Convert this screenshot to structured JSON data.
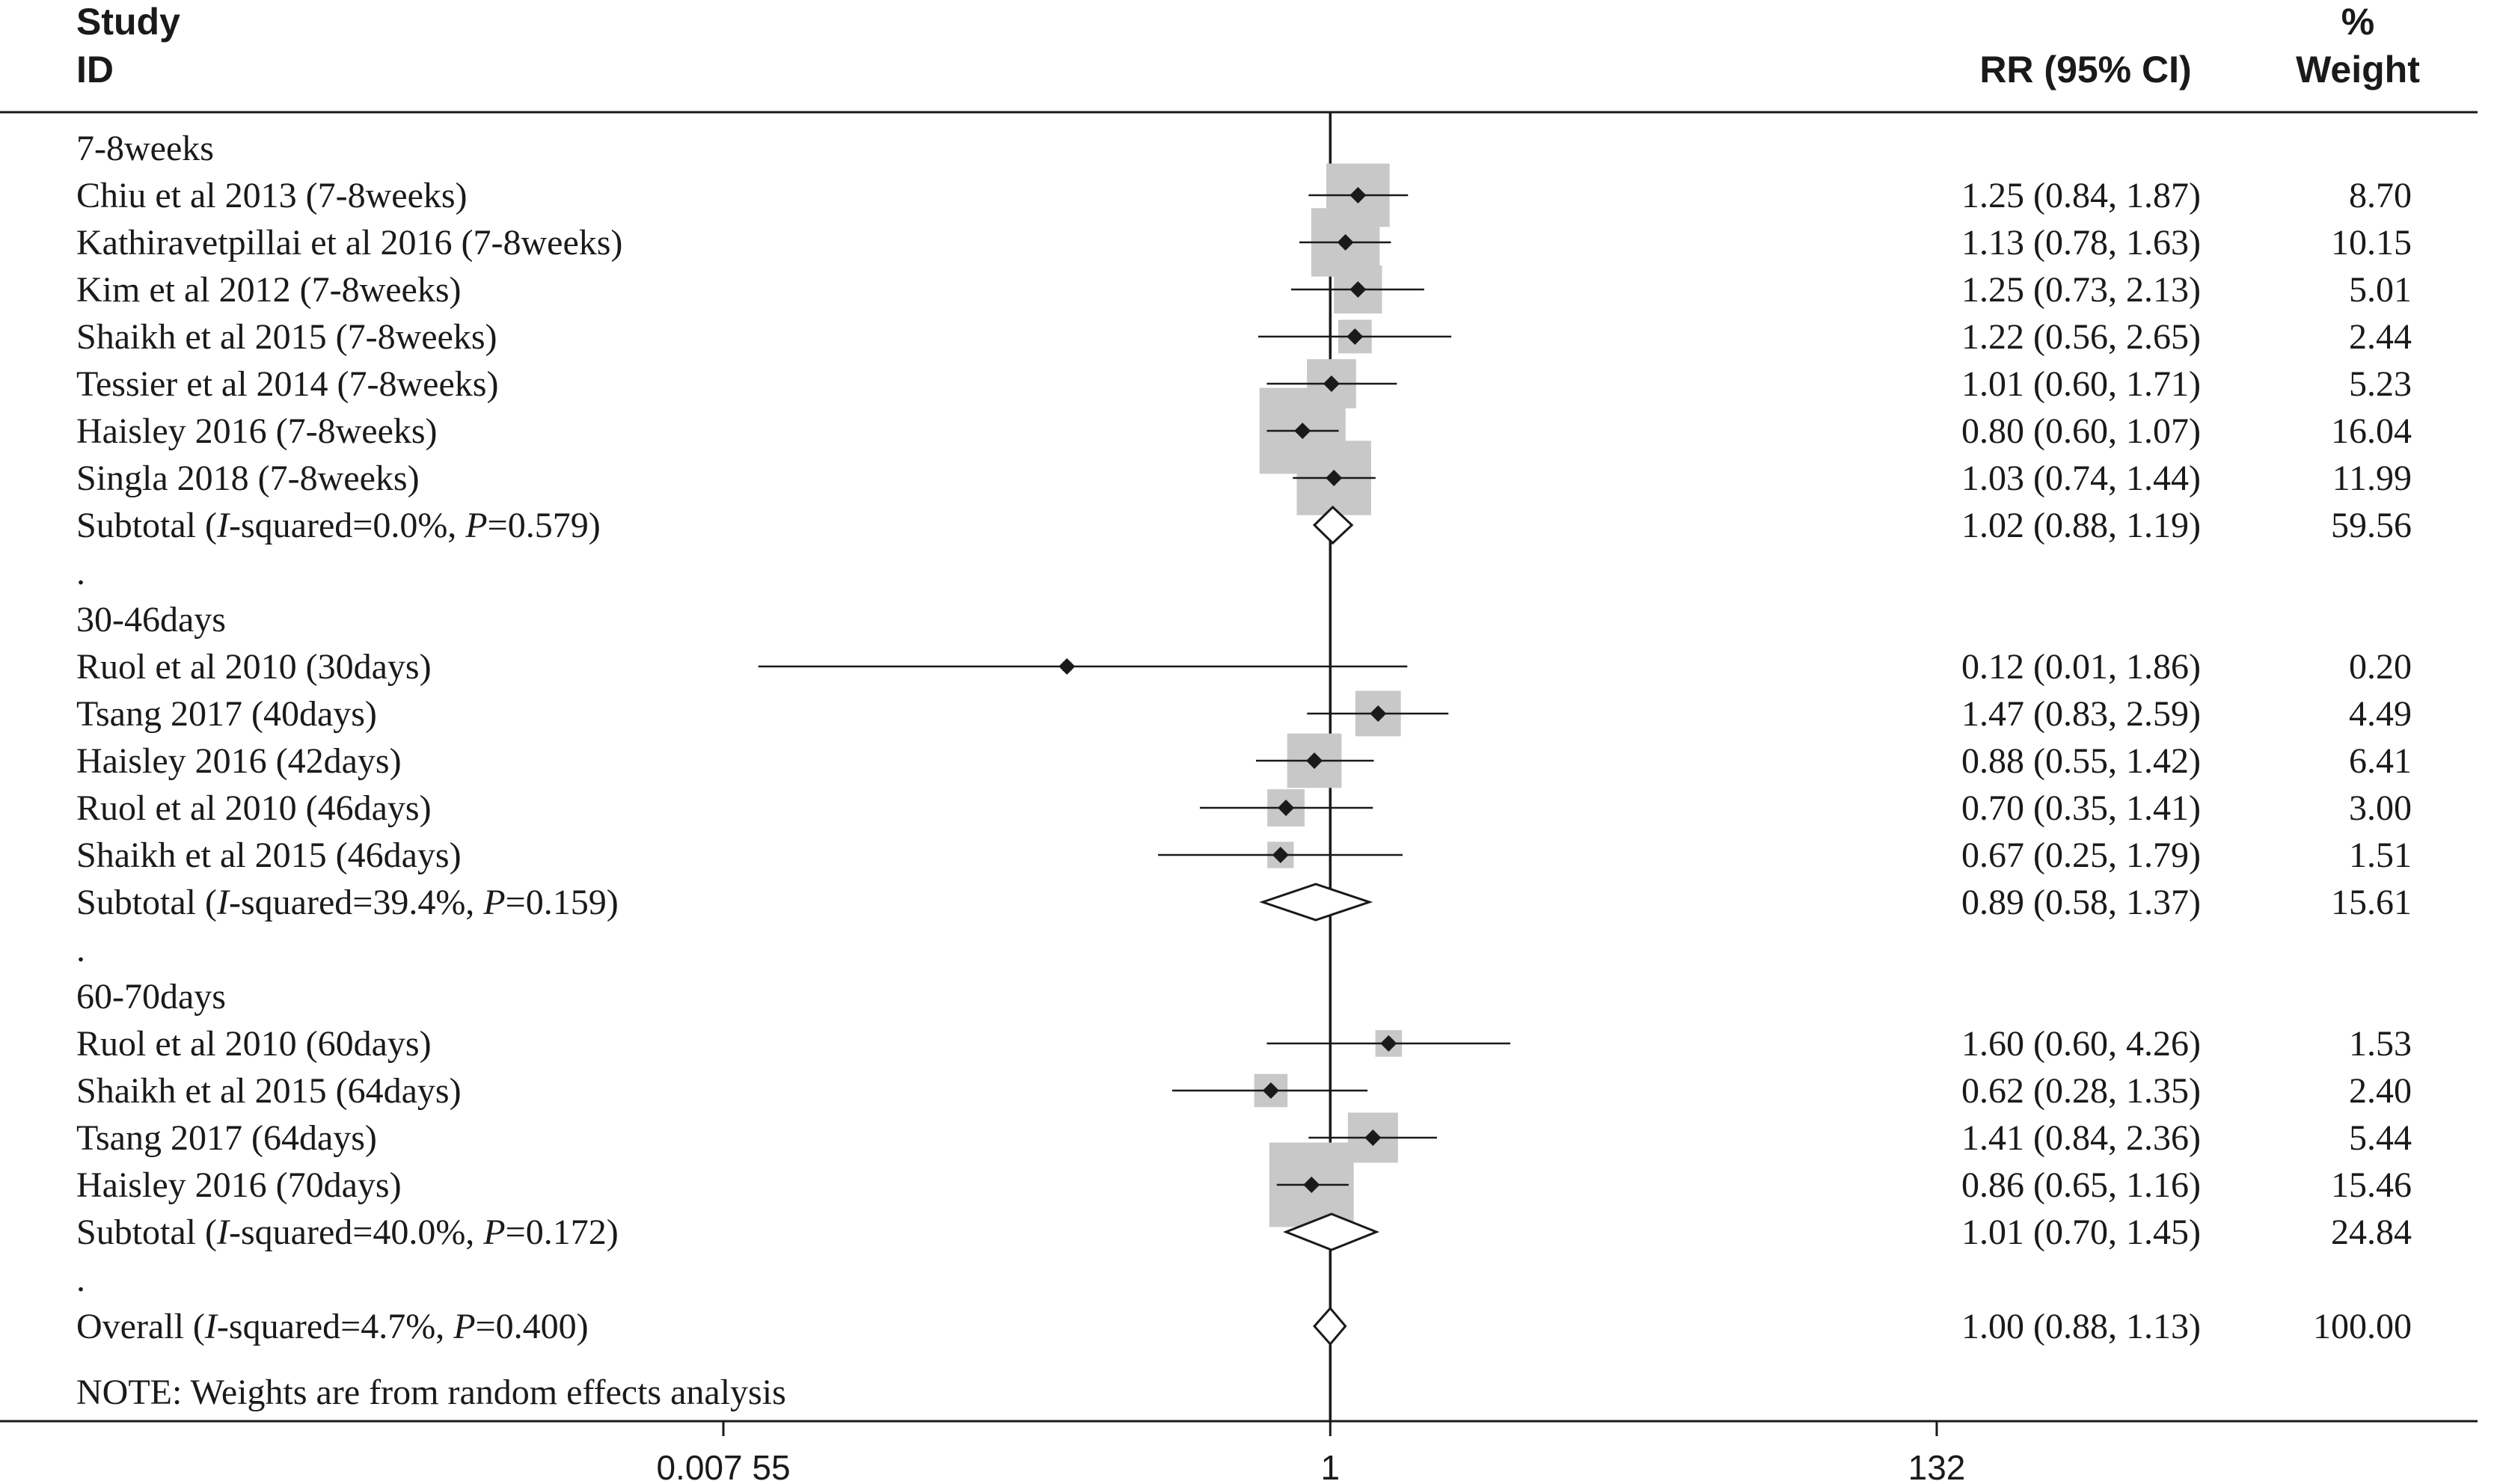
{
  "headers": {
    "study_line1": "Study",
    "study_line2": "ID",
    "rr": "RR (95% CI)",
    "weight_line1": "%",
    "weight_line2": "Weight"
  },
  "note": "NOTE: Weights are from random effects analysis",
  "colors": {
    "text": "#1a1a1a",
    "weight_box": "#c8c8c8",
    "line": "#1a1a1a",
    "background": "#ffffff"
  },
  "chart_data": {
    "type": "forest",
    "effect_measure": "RR (95% CI)",
    "x_scale": "log",
    "xlim": [
      0.00755,
      132
    ],
    "x_ticks": [
      0.00755,
      1,
      132
    ],
    "x_tick_labels": [
      "0.007 55",
      "1",
      "132"
    ],
    "null_line": 1,
    "rows": [
      {
        "kind": "group",
        "label": "7-8weeks"
      },
      {
        "kind": "study",
        "label": "Chiu et al 2013 (7-8weeks)",
        "rr": 1.25,
        "lo": 0.84,
        "hi": 1.87,
        "ci_text": "1.25 (0.84, 1.87)",
        "weight": 8.7,
        "weight_text": "8.70"
      },
      {
        "kind": "study",
        "label": "Kathiravetpillai et al 2016 (7-8weeks)",
        "rr": 1.13,
        "lo": 0.78,
        "hi": 1.63,
        "ci_text": "1.13 (0.78, 1.63)",
        "weight": 10.15,
        "weight_text": "10.15"
      },
      {
        "kind": "study",
        "label": "Kim et al 2012 (7-8weeks)",
        "rr": 1.25,
        "lo": 0.73,
        "hi": 2.13,
        "ci_text": "1.25 (0.73, 2.13)",
        "weight": 5.01,
        "weight_text": "5.01"
      },
      {
        "kind": "study",
        "label": "Shaikh et al 2015 (7-8weeks)",
        "rr": 1.22,
        "lo": 0.56,
        "hi": 2.65,
        "ci_text": "1.22 (0.56, 2.65)",
        "weight": 2.44,
        "weight_text": "2.44"
      },
      {
        "kind": "study",
        "label": "Tessier et al 2014 (7-8weeks)",
        "rr": 1.01,
        "lo": 0.6,
        "hi": 1.71,
        "ci_text": "1.01 (0.60, 1.71)",
        "weight": 5.23,
        "weight_text": "5.23"
      },
      {
        "kind": "study",
        "label": "Haisley 2016 (7-8weeks)",
        "rr": 0.8,
        "lo": 0.6,
        "hi": 1.07,
        "ci_text": "0.80 (0.60, 1.07)",
        "weight": 16.04,
        "weight_text": "16.04"
      },
      {
        "kind": "study",
        "label": "Singla 2018 (7-8weeks)",
        "rr": 1.03,
        "lo": 0.74,
        "hi": 1.44,
        "ci_text": "1.03 (0.74, 1.44)",
        "weight": 11.99,
        "weight_text": "11.99"
      },
      {
        "kind": "subtotal",
        "label": "Subtotal  (",
        "i2_italic": "I",
        "i2_text": "-squared=0.0%, ",
        "p_italic": "P",
        "p_text": "=0.579)",
        "rr": 1.02,
        "lo": 0.88,
        "hi": 1.19,
        "ci_text": "1.02 (0.88, 1.19)",
        "weight": 59.56,
        "weight_text": "59.56"
      },
      {
        "kind": "spacer",
        "label": "."
      },
      {
        "kind": "group",
        "label": "30-46days"
      },
      {
        "kind": "study",
        "label": "Ruol et al 2010 (30days)",
        "rr": 0.12,
        "lo": 0.01,
        "hi": 1.86,
        "ci_text": "0.12 (0.01, 1.86)",
        "weight": 0.2,
        "weight_text": "0.20"
      },
      {
        "kind": "study",
        "label": "Tsang 2017 (40days)",
        "rr": 1.47,
        "lo": 0.83,
        "hi": 2.59,
        "ci_text": "1.47 (0.83, 2.59)",
        "weight": 4.49,
        "weight_text": "4.49"
      },
      {
        "kind": "study",
        "label": "Haisley 2016 (42days)",
        "rr": 0.88,
        "lo": 0.55,
        "hi": 1.42,
        "ci_text": "0.88 (0.55, 1.42)",
        "weight": 6.41,
        "weight_text": "6.41"
      },
      {
        "kind": "study",
        "label": "Ruol et al 2010 (46days)",
        "rr": 0.7,
        "lo": 0.35,
        "hi": 1.41,
        "ci_text": "0.70 (0.35, 1.41)",
        "weight": 3.0,
        "weight_text": "3.00"
      },
      {
        "kind": "study",
        "label": "Shaikh et al 2015 (46days)",
        "rr": 0.67,
        "lo": 0.25,
        "hi": 1.79,
        "ci_text": "0.67 (0.25, 1.79)",
        "weight": 1.51,
        "weight_text": "1.51"
      },
      {
        "kind": "subtotal",
        "label": "Subtotal  (",
        "i2_italic": "I",
        "i2_text": "-squared=39.4%, ",
        "p_italic": "P",
        "p_text": "=0.159)",
        "rr": 0.89,
        "lo": 0.58,
        "hi": 1.37,
        "ci_text": "0.89 (0.58, 1.37)",
        "weight": 15.61,
        "weight_text": "15.61"
      },
      {
        "kind": "spacer",
        "label": "."
      },
      {
        "kind": "group",
        "label": "60-70days"
      },
      {
        "kind": "study",
        "label": "Ruol et al 2010  (60days)",
        "rr": 1.6,
        "lo": 0.6,
        "hi": 4.26,
        "ci_text": "1.60 (0.60, 4.26)",
        "weight": 1.53,
        "weight_text": "1.53"
      },
      {
        "kind": "study",
        "label": "Shaikh et al 2015  (64days)",
        "rr": 0.62,
        "lo": 0.28,
        "hi": 1.35,
        "ci_text": "0.62 (0.28, 1.35)",
        "weight": 2.4,
        "weight_text": "2.40"
      },
      {
        "kind": "study",
        "label": "Tsang 2017 (64days)",
        "rr": 1.41,
        "lo": 0.84,
        "hi": 2.36,
        "ci_text": "1.41 (0.84, 2.36)",
        "weight": 5.44,
        "weight_text": "5.44"
      },
      {
        "kind": "study",
        "label": "Haisley 2016 (70days)",
        "rr": 0.86,
        "lo": 0.65,
        "hi": 1.16,
        "ci_text": "0.86 (0.65, 1.16)",
        "weight": 15.46,
        "weight_text": "15.46"
      },
      {
        "kind": "subtotal",
        "label": "Subtotal  (",
        "i2_italic": "I",
        "i2_text": "-squared=40.0%, ",
        "p_italic": "P",
        "p_text": "=0.172)",
        "rr": 1.01,
        "lo": 0.7,
        "hi": 1.45,
        "ci_text": "1.01 (0.70, 1.45)",
        "weight": 24.84,
        "weight_text": "24.84"
      },
      {
        "kind": "spacer",
        "label": "."
      },
      {
        "kind": "overall",
        "label": "Overall  (",
        "i2_italic": "I",
        "i2_text": "-squared=4.7%, ",
        "p_italic": "P",
        "p_text": "=0.400)",
        "rr": 1.0,
        "lo": 0.88,
        "hi": 1.13,
        "ci_text": "1.00 (0.88, 1.13)",
        "weight": 100.0,
        "weight_text": "100.00"
      }
    ]
  }
}
